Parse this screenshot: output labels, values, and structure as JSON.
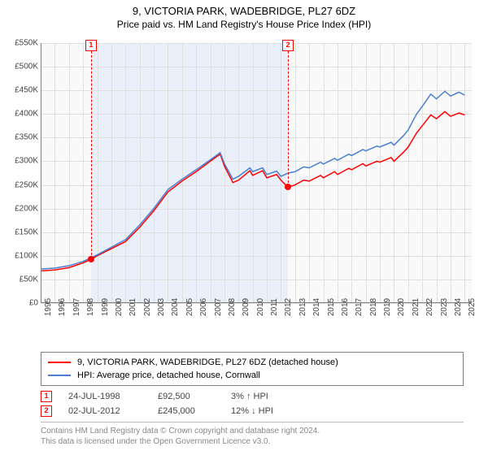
{
  "title": "9, VICTORIA PARK, WADEBRIDGE, PL27 6DZ",
  "subtitle": "Price paid vs. HM Land Registry's House Price Index (HPI)",
  "chart": {
    "type": "line",
    "background_color": "#f9f9f9",
    "shaded_color": "#eaf0fa",
    "grid_color": "#e0e0e0",
    "border_color": "#808080",
    "xlim": [
      1995,
      2025.5
    ],
    "ylim": [
      0,
      550000
    ],
    "yticks": [
      0,
      50000,
      100000,
      150000,
      200000,
      250000,
      300000,
      350000,
      400000,
      450000,
      500000,
      550000
    ],
    "ytick_labels": [
      "£0",
      "£50K",
      "£100K",
      "£150K",
      "£200K",
      "£250K",
      "£300K",
      "£350K",
      "£400K",
      "£450K",
      "£500K",
      "£550K"
    ],
    "xticks": [
      1995,
      1996,
      1997,
      1998,
      1999,
      2000,
      2001,
      2002,
      2003,
      2004,
      2005,
      2006,
      2007,
      2008,
      2009,
      2010,
      2011,
      2012,
      2013,
      2014,
      2015,
      2016,
      2017,
      2018,
      2019,
      2020,
      2021,
      2022,
      2023,
      2024,
      2025
    ],
    "shaded_range": [
      1998.56,
      2012.5
    ],
    "sale_markers": [
      {
        "n": "1",
        "x": 1998.56,
        "y": 92500
      },
      {
        "n": "2",
        "x": 2012.5,
        "y": 245000
      }
    ],
    "series": [
      {
        "name": "property",
        "color": "#ff0000",
        "width": 1.5,
        "data": [
          [
            1995,
            68000
          ],
          [
            1996,
            70000
          ],
          [
            1997,
            75000
          ],
          [
            1998,
            85000
          ],
          [
            1998.56,
            92500
          ],
          [
            1999,
            100000
          ],
          [
            2000,
            115000
          ],
          [
            2001,
            130000
          ],
          [
            2002,
            160000
          ],
          [
            2003,
            195000
          ],
          [
            2004,
            235000
          ],
          [
            2005,
            258000
          ],
          [
            2006,
            278000
          ],
          [
            2007,
            300000
          ],
          [
            2007.7,
            315000
          ],
          [
            2008,
            290000
          ],
          [
            2008.6,
            255000
          ],
          [
            2009,
            260000
          ],
          [
            2009.8,
            280000
          ],
          [
            2010,
            270000
          ],
          [
            2010.7,
            280000
          ],
          [
            2011,
            265000
          ],
          [
            2011.7,
            272000
          ],
          [
            2012,
            260000
          ],
          [
            2012.5,
            245000
          ],
          [
            2013,
            250000
          ],
          [
            2013.6,
            260000
          ],
          [
            2014,
            258000
          ],
          [
            2014.8,
            270000
          ],
          [
            2015,
            265000
          ],
          [
            2015.8,
            278000
          ],
          [
            2016,
            272000
          ],
          [
            2016.8,
            285000
          ],
          [
            2017,
            282000
          ],
          [
            2017.8,
            295000
          ],
          [
            2018,
            290000
          ],
          [
            2018.8,
            300000
          ],
          [
            2019,
            298000
          ],
          [
            2019.8,
            308000
          ],
          [
            2020,
            300000
          ],
          [
            2020.7,
            320000
          ],
          [
            2021,
            330000
          ],
          [
            2021.6,
            360000
          ],
          [
            2022,
            375000
          ],
          [
            2022.6,
            398000
          ],
          [
            2023,
            390000
          ],
          [
            2023.6,
            405000
          ],
          [
            2024,
            395000
          ],
          [
            2024.6,
            402000
          ],
          [
            2025,
            398000
          ]
        ]
      },
      {
        "name": "hpi",
        "color": "#4a7fd1",
        "width": 1.5,
        "data": [
          [
            1995,
            72000
          ],
          [
            1996,
            74000
          ],
          [
            1997,
            79000
          ],
          [
            1998,
            88000
          ],
          [
            1999,
            102000
          ],
          [
            2000,
            118000
          ],
          [
            2001,
            134000
          ],
          [
            2002,
            165000
          ],
          [
            2003,
            200000
          ],
          [
            2004,
            240000
          ],
          [
            2005,
            262000
          ],
          [
            2006,
            282000
          ],
          [
            2007,
            303000
          ],
          [
            2007.7,
            318000
          ],
          [
            2008,
            295000
          ],
          [
            2008.6,
            262000
          ],
          [
            2009,
            268000
          ],
          [
            2009.8,
            286000
          ],
          [
            2010,
            278000
          ],
          [
            2010.7,
            286000
          ],
          [
            2011,
            272000
          ],
          [
            2011.7,
            279000
          ],
          [
            2012,
            268000
          ],
          [
            2012.5,
            275000
          ],
          [
            2013,
            278000
          ],
          [
            2013.6,
            288000
          ],
          [
            2014,
            286000
          ],
          [
            2014.8,
            298000
          ],
          [
            2015,
            294000
          ],
          [
            2015.8,
            306000
          ],
          [
            2016,
            302000
          ],
          [
            2016.8,
            315000
          ],
          [
            2017,
            312000
          ],
          [
            2017.8,
            325000
          ],
          [
            2018,
            322000
          ],
          [
            2018.8,
            332000
          ],
          [
            2019,
            330000
          ],
          [
            2019.8,
            340000
          ],
          [
            2020,
            334000
          ],
          [
            2020.7,
            355000
          ],
          [
            2021,
            366000
          ],
          [
            2021.6,
            400000
          ],
          [
            2022,
            416000
          ],
          [
            2022.6,
            442000
          ],
          [
            2023,
            432000
          ],
          [
            2023.6,
            448000
          ],
          [
            2024,
            438000
          ],
          [
            2024.6,
            446000
          ],
          [
            2025,
            440000
          ]
        ]
      }
    ]
  },
  "legend": {
    "series1": {
      "color": "#ff0000",
      "label": "9, VICTORIA PARK, WADEBRIDGE, PL27 6DZ (detached house)"
    },
    "series2": {
      "color": "#4a7fd1",
      "label": "HPI: Average price, detached house, Cornwall"
    }
  },
  "sales": [
    {
      "n": "1",
      "date": "24-JUL-1998",
      "price": "£92,500",
      "diff": "3%",
      "arrow": "↑",
      "diff_label": "HPI"
    },
    {
      "n": "2",
      "date": "02-JUL-2012",
      "price": "£245,000",
      "diff": "12%",
      "arrow": "↓",
      "diff_label": "HPI"
    }
  ],
  "footer": {
    "line1": "Contains HM Land Registry data © Crown copyright and database right 2024.",
    "line2": "This data is licensed under the Open Government Licence v3.0."
  }
}
